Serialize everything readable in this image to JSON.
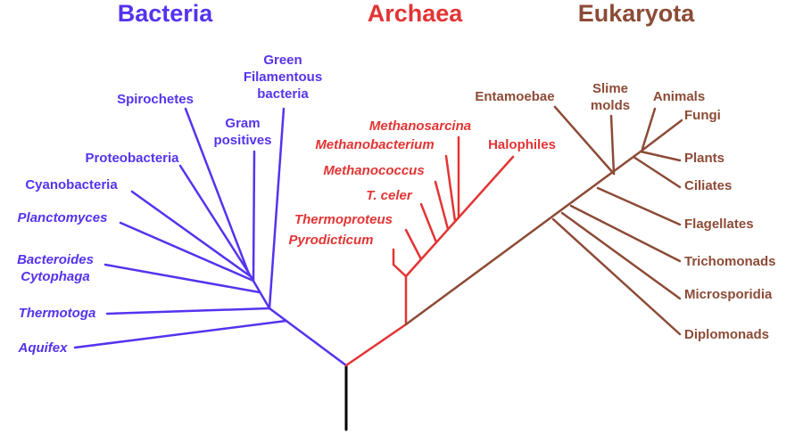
{
  "groups": [
    {
      "title": "Bacteria",
      "leaves": [
        [
          "Green",
          "Filamentous",
          "bacteria"
        ],
        [
          "Spirochetes"
        ],
        [
          "Gram",
          "positives"
        ],
        [
          "Proteobacteria"
        ],
        [
          "Cyanobacteria"
        ],
        [
          "Planctomyces"
        ],
        [
          "Bacteroides",
          "Cytophaga"
        ],
        [
          "Thermotoga"
        ],
        [
          "Aquifex"
        ]
      ]
    },
    {
      "title": "Archaea",
      "leaves": [
        [
          "Methanosarcina"
        ],
        [
          "Methanobacterium"
        ],
        [
          "Methanococcus"
        ],
        [
          "T. celer"
        ],
        [
          "Thermoproteus"
        ],
        [
          "Pyrodicticum"
        ],
        [
          "Halophiles"
        ]
      ]
    },
    {
      "title": "Eukaryota",
      "leaves": [
        [
          "Entamoebae"
        ],
        [
          "Slime",
          "molds"
        ],
        [
          "Animals"
        ],
        [
          "Fungi"
        ],
        [
          "Plants"
        ],
        [
          "Ciliates"
        ],
        [
          "Flagellates"
        ],
        [
          "Trichomonads"
        ],
        [
          "Microsporidia"
        ],
        [
          "Diplomonads"
        ]
      ]
    }
  ]
}
